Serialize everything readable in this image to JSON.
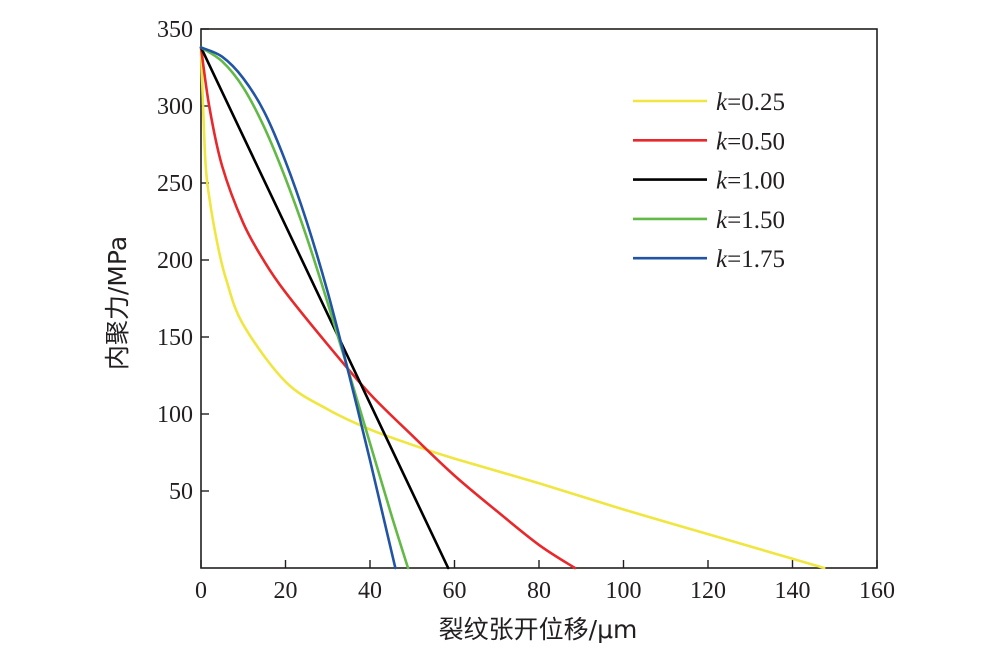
{
  "chart_data": {
    "type": "line",
    "xlabel": "裂纹张开位移/μm",
    "ylabel": "内聚力/MPa",
    "xlim": [
      0,
      160
    ],
    "ylim": [
      0,
      350
    ],
    "x_ticks": [
      "0",
      "20",
      "40",
      "60",
      "80",
      "100",
      "120",
      "140",
      "160"
    ],
    "y_ticks": [
      "50",
      "100",
      "150",
      "200",
      "250",
      "300",
      "350"
    ],
    "grid": false,
    "legend_position": "top-right",
    "legend_prefix": "k",
    "series": [
      {
        "name": "=0.25",
        "color": "#f0e640",
        "x": [
          0,
          1,
          2,
          4,
          6,
          10,
          20,
          30,
          40,
          50,
          60,
          80,
          100,
          120,
          140,
          147.5
        ],
        "y": [
          338,
          266,
          240,
          209,
          187,
          158,
          121,
          103,
          90,
          80,
          71,
          55,
          38,
          22,
          6,
          0
        ]
      },
      {
        "name": "=0.50",
        "color": "#e8282b",
        "x": [
          0,
          2,
          5,
          10,
          15,
          20,
          30,
          40,
          50,
          60,
          70,
          80,
          88.5
        ],
        "y": [
          338,
          299,
          261,
          224,
          199,
          179,
          145,
          113,
          86,
          60,
          37,
          15,
          0
        ]
      },
      {
        "name": "=1.00",
        "color": "#000000",
        "x": [
          0,
          58.5
        ],
        "y": [
          338,
          0
        ]
      },
      {
        "name": "=1.50",
        "color": "#62b946",
        "x": [
          0,
          5,
          10,
          15,
          20,
          25,
          30,
          35,
          40,
          45,
          49
        ],
        "y": [
          338,
          329,
          312,
          286,
          253,
          215,
          172,
          127,
          81,
          35,
          0
        ]
      },
      {
        "name": "=1.75",
        "color": "#2153a6",
        "x": [
          0,
          5,
          10,
          15,
          20,
          25,
          30,
          35,
          40,
          43,
          46
        ],
        "y": [
          338,
          332,
          318,
          296,
          264,
          225,
          179,
          126,
          70,
          35,
          0
        ]
      }
    ]
  }
}
